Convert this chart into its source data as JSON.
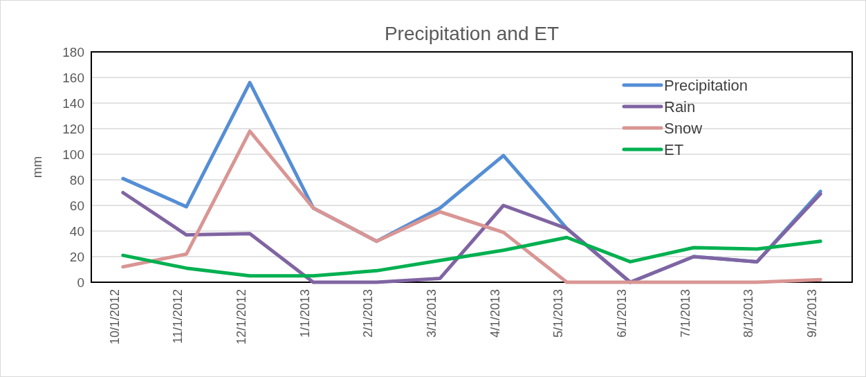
{
  "chart_data": {
    "type": "line",
    "title": "Precipitation and ET",
    "ylabel": "mm",
    "categories": [
      "10/1/2012",
      "11/1/2012",
      "12/1/2012",
      "1/1/2013",
      "2/1/2013",
      "3/1/2013",
      "4/1/2013",
      "5/1/2013",
      "6/1/2013",
      "7/1/2013",
      "8/1/2013",
      "9/1/2013"
    ],
    "series": [
      {
        "name": "Precipitation",
        "color": "#558ed5",
        "values": [
          81,
          59,
          156,
          58,
          32,
          58,
          99,
          42,
          0,
          20,
          16,
          71
        ]
      },
      {
        "name": "Rain",
        "color": "#8064a2",
        "values": [
          70,
          37,
          38,
          0,
          0,
          3,
          60,
          42,
          0,
          20,
          16,
          69
        ]
      },
      {
        "name": "Snow",
        "color": "#d99694",
        "values": [
          12,
          22,
          118,
          58,
          32,
          55,
          39,
          0,
          0,
          0,
          0,
          2
        ]
      },
      {
        "name": "ET",
        "color": "#00b050",
        "values": [
          21,
          11,
          5,
          5,
          9,
          17,
          25,
          35,
          16,
          27,
          26,
          32
        ]
      }
    ],
    "ylim": [
      0,
      180
    ],
    "yticks": [
      0,
      20,
      40,
      60,
      80,
      100,
      120,
      140,
      160,
      180
    ],
    "grid": "y",
    "legend": "top right",
    "marker": "none",
    "line_style": "solid"
  }
}
